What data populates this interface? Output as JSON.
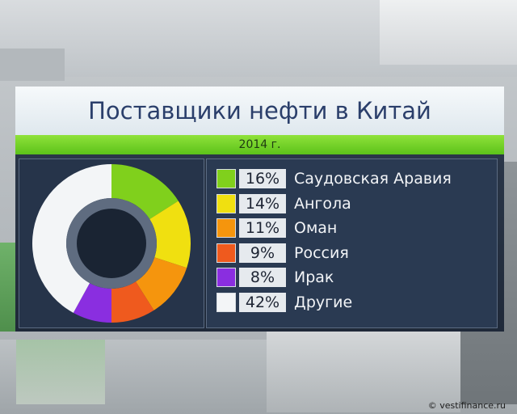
{
  "header": {
    "title": "Поставщики нефти в Китай",
    "subtitle": "2014 г."
  },
  "credit": "© vestifinance.ru",
  "colors": {
    "accent_green": "#8ad63a",
    "panel_dark": "#26344a",
    "title_text": "#2b3f6b"
  },
  "chart_data": {
    "type": "pie",
    "variant": "donut",
    "title": "Поставщики нефти в Китай",
    "subtitle": "2014 г.",
    "legend_placement": "right",
    "slices": [
      {
        "label": "Саудовская Аравия",
        "value": 16,
        "value_label": "16%",
        "color": "#80d01c"
      },
      {
        "label": "Ангола",
        "value": 14,
        "value_label": "14%",
        "color": "#f0e010"
      },
      {
        "label": "Оман",
        "value": 11,
        "value_label": "11%",
        "color": "#f5950d"
      },
      {
        "label": "Россия",
        "value": 9,
        "value_label": "9%",
        "color": "#ef5a1e"
      },
      {
        "label": "Ирак",
        "value": 8,
        "value_label": "8%",
        "color": "#8a2ee0"
      },
      {
        "label": "Другие",
        "value": 42,
        "value_label": "42%",
        "color": "#f3f5f7"
      }
    ]
  }
}
